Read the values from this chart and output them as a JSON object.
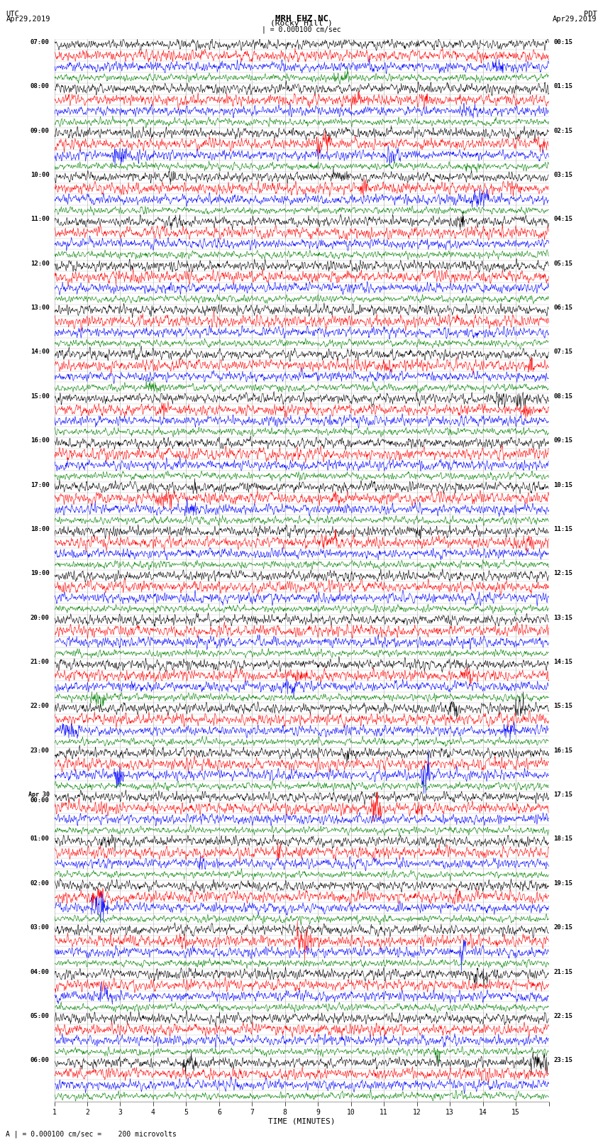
{
  "title_line1": "MRH EHZ NC",
  "title_line2": "(Rocky Hill )",
  "scale_label": "| = 0.000100 cm/sec",
  "left_header_line1": "UTC",
  "left_header_line2": "Apr29,2019",
  "right_header_line1": "PDT",
  "right_header_line2": "Apr29,2019",
  "xlabel": "TIME (MINUTES)",
  "footer": "A | = 0.000100 cm/sec =    200 microvolts",
  "xmin": 0,
  "xmax": 15,
  "bg_color": "#ffffff",
  "grid_color": "#888888",
  "trace_colors": [
    "black",
    "red",
    "blue",
    "green"
  ],
  "utc_labels": [
    "07:00",
    "08:00",
    "09:00",
    "10:00",
    "11:00",
    "12:00",
    "13:00",
    "14:00",
    "15:00",
    "16:00",
    "17:00",
    "18:00",
    "19:00",
    "20:00",
    "21:00",
    "22:00",
    "23:00",
    "Apr 30\n00:00",
    "01:00",
    "02:00",
    "03:00",
    "04:00",
    "05:00",
    "06:00"
  ],
  "pdt_labels": [
    "00:15",
    "01:15",
    "02:15",
    "03:15",
    "04:15",
    "05:15",
    "06:15",
    "07:15",
    "08:15",
    "09:15",
    "10:15",
    "11:15",
    "12:15",
    "13:15",
    "14:15",
    "15:15",
    "16:15",
    "17:15",
    "18:15",
    "19:15",
    "20:15",
    "21:15",
    "22:15",
    "23:15"
  ],
  "num_hour_rows": 24,
  "traces_per_hour": 4,
  "noise_seed": 42,
  "noise_base": [
    0.35,
    0.4,
    0.35,
    0.25
  ],
  "N_points": 1500
}
